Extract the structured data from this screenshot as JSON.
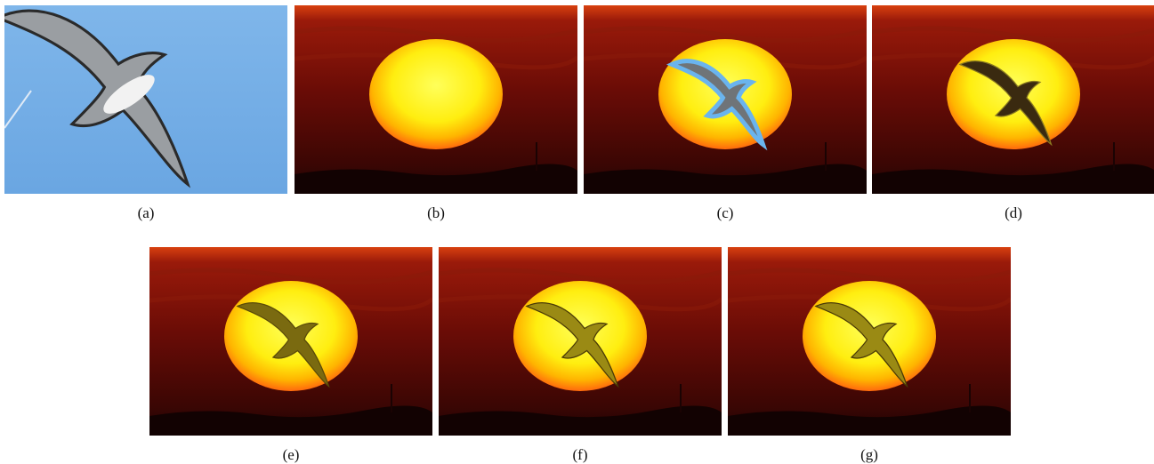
{
  "figure": {
    "captions": [
      "(a)",
      "(b)",
      "(c)",
      "(d)",
      "(e)",
      "(f)",
      "(g)"
    ]
  }
}
